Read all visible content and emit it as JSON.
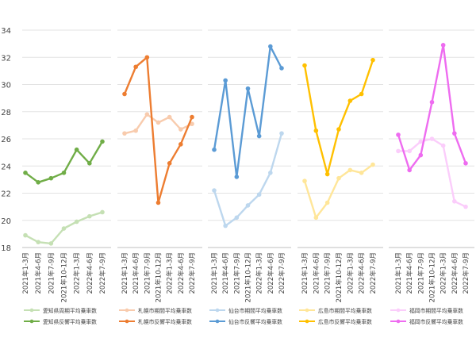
{
  "chart_data": {
    "type": "line",
    "ylim": [
      18,
      34
    ],
    "yticks": [
      "18",
      "20",
      "22",
      "24",
      "26",
      "28",
      "30",
      "32",
      "34"
    ],
    "grid": true,
    "legend_position": "bottom",
    "categories": [
      "2021年1-3月",
      "2021年4-6月",
      "2021年7-9月",
      "2021年10-12月",
      "2022年1-3月",
      "2022年4-6月",
      "2022年7-9月"
    ],
    "panels": [
      {
        "color": "#70ad47",
        "series": [
          {
            "name": "愛知県周期平均乗車数",
            "role": "light",
            "color": "#c5e0b4",
            "values": [
              18.9,
              18.4,
              18.3,
              19.4,
              19.9,
              20.3,
              20.6
            ]
          },
          {
            "name": "愛知県反響平均乗車数",
            "role": "dark",
            "color": "#70ad47",
            "values": [
              23.5,
              22.8,
              23.1,
              23.5,
              25.2,
              24.2,
              25.8
            ]
          }
        ]
      },
      {
        "color": "#ed7d31",
        "series": [
          {
            "name": "札幌市期間平均乗車数",
            "role": "light",
            "color": "#f8cbad",
            "values": [
              26.4,
              26.6,
              27.8,
              27.2,
              27.6,
              26.7,
              27.1
            ]
          },
          {
            "name": "札幌市反響平均乗車数",
            "role": "dark",
            "color": "#ed7d31",
            "values": [
              29.3,
              31.3,
              32.0,
              21.3,
              24.2,
              25.6,
              27.6
            ]
          }
        ]
      },
      {
        "color": "#5b9bd5",
        "series": [
          {
            "name": "仙台市期間平均乗車数",
            "role": "light",
            "color": "#bdd7ee",
            "values": [
              22.2,
              19.6,
              20.2,
              21.1,
              21.9,
              23.5,
              26.4
            ]
          },
          {
            "name": "仙台市反響平均乗車数",
            "role": "dark",
            "color": "#5b9bd5",
            "values": [
              25.2,
              30.3,
              23.2,
              29.7,
              26.2,
              32.8,
              31.2
            ]
          }
        ]
      },
      {
        "color": "#ffc000",
        "series": [
          {
            "name": "広島市期間平均乗車数",
            "role": "light",
            "color": "#ffe699",
            "values": [
              22.9,
              20.2,
              21.3,
              23.1,
              23.7,
              23.5,
              24.1
            ]
          },
          {
            "name": "広島市反響平均乗車数",
            "role": "dark",
            "color": "#ffc000",
            "values": [
              31.4,
              26.6,
              23.4,
              26.7,
              28.8,
              29.3,
              31.8
            ]
          }
        ]
      },
      {
        "color": "#ee6cf0",
        "series": [
          {
            "name": "福岡市期間平均乗車数",
            "role": "light",
            "color": "#fbcdfb",
            "values": [
              25.1,
              25.1,
              25.8,
              26.0,
              25.5,
              21.4,
              21.0
            ]
          },
          {
            "name": "福岡市反響平均乗車数",
            "role": "dark",
            "color": "#ee6cf0",
            "values": [
              26.3,
              23.7,
              24.8,
              28.7,
              32.9,
              26.4,
              24.2
            ]
          }
        ]
      }
    ]
  }
}
